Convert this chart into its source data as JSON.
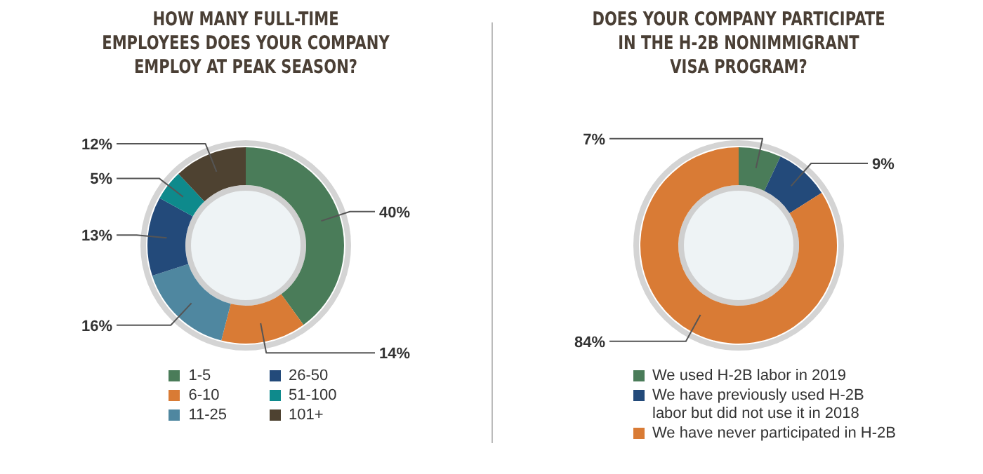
{
  "chart_data": [
    {
      "type": "donut",
      "title": "HOW MANY FULL-TIME\nEMPLOYEES DOES YOUR COMPANY\nEMPLOY AT PEAK SEASON?",
      "categories": [
        "1-5",
        "6-10",
        "11-25",
        "26-50",
        "51-100",
        "101+"
      ],
      "values": [
        40,
        14,
        16,
        13,
        5,
        12
      ],
      "value_labels": [
        "40%",
        "14%",
        "16%",
        "13%",
        "5%",
        "12%"
      ],
      "colors": [
        "#4a7c59",
        "#d97b35",
        "#4f87a0",
        "#234a7a",
        "#0e8a8c",
        "#4e4231"
      ],
      "legend": "bottom"
    },
    {
      "type": "donut",
      "title": "DOES YOUR COMPANY PARTICIPATE\nIN THE H-2B NONIMMIGRANT\nVISA PROGRAM?",
      "categories": [
        "We used H-2B labor in 2019",
        "We have previously used H-2B labor but did not use it in 2018",
        "We have never participated in H-2B"
      ],
      "values": [
        7,
        9,
        84
      ],
      "value_labels": [
        "7%",
        "9%",
        "84%"
      ],
      "colors": [
        "#4a7c59",
        "#234a7a",
        "#d97b35"
      ],
      "legend": "bottom"
    }
  ]
}
